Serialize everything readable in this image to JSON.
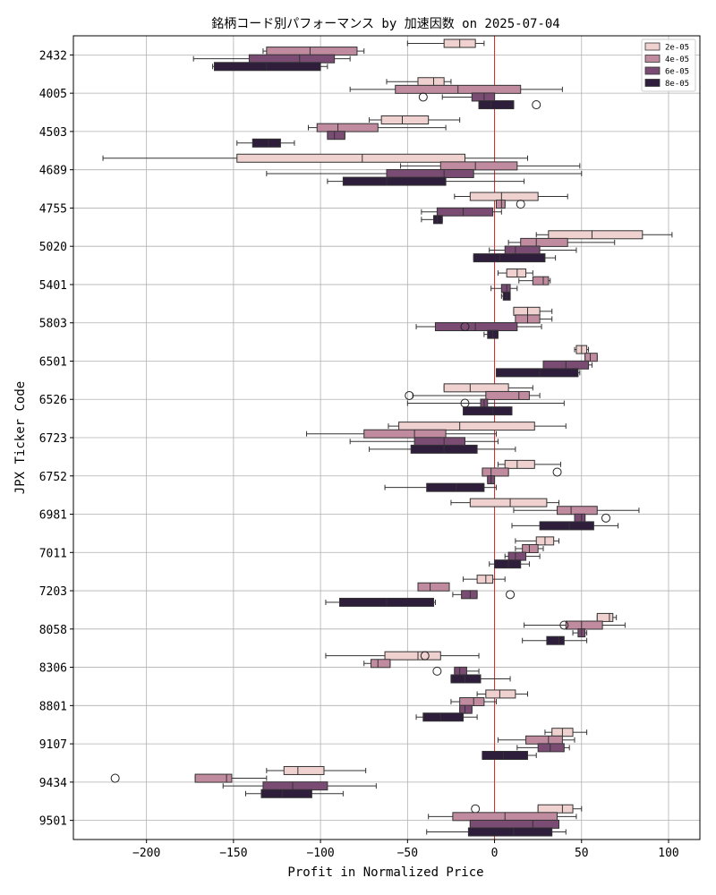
{
  "chart_data": {
    "type": "box",
    "orientation": "horizontal",
    "title": "銘柄コード別パフォーマンス by 加速因数 on 2025-07-04",
    "xlabel": "Profit in Normalized Price",
    "ylabel": "JPX Ticker Code",
    "xlim": [
      -242,
      118
    ],
    "xticks": [
      -200,
      -150,
      -100,
      -50,
      0,
      50,
      100
    ],
    "xtick_labels": [
      "−200",
      "−150",
      "−100",
      "−50",
      "0",
      "50",
      "100"
    ],
    "grid": true,
    "reference_line": {
      "x": 0,
      "color": "#d62728"
    },
    "legend": {
      "placement": "top-right",
      "entries": [
        {
          "label": "2e-05",
          "color": "#efd1cf"
        },
        {
          "label": "4e-05",
          "color": "#c08a9f"
        },
        {
          "label": "6e-05",
          "color": "#7b4c73"
        },
        {
          "label": "8e-05",
          "color": "#2e1e3c"
        }
      ]
    },
    "categories": [
      "2432",
      "4005",
      "4503",
      "4689",
      "4755",
      "5020",
      "5401",
      "5803",
      "6501",
      "6526",
      "6723",
      "6752",
      "6981",
      "7011",
      "7203",
      "8058",
      "8306",
      "8801",
      "9107",
      "9434",
      "9501"
    ],
    "series": [
      {
        "name": "2e-05",
        "boxes": [
          {
            "cat": "2432",
            "wmin": -50,
            "q1": -29,
            "med": -20,
            "q3": -11,
            "wmax": -6,
            "outliers": []
          },
          {
            "cat": "4005",
            "wmin": -62,
            "q1": -44,
            "med": -35,
            "q3": -29,
            "wmax": -25,
            "outliers": []
          },
          {
            "cat": "4503",
            "wmin": -72,
            "q1": -65,
            "med": -53,
            "q3": -38,
            "wmax": -20,
            "outliers": []
          },
          {
            "cat": "4689",
            "wmin": -225,
            "q1": -148,
            "med": -76,
            "q3": -17,
            "wmax": 19,
            "outliers": []
          },
          {
            "cat": "4755",
            "wmin": -23,
            "q1": -14,
            "med": 4,
            "q3": 25,
            "wmax": 42,
            "outliers": []
          },
          {
            "cat": "5020",
            "wmin": 24,
            "q1": 31,
            "med": 56,
            "q3": 85,
            "wmax": 102,
            "outliers": []
          },
          {
            "cat": "5401",
            "wmin": 2,
            "q1": 7,
            "med": 13,
            "q3": 18,
            "wmax": 22,
            "outliers": []
          },
          {
            "cat": "5803",
            "wmin": 11,
            "q1": 11,
            "med": 19,
            "q3": 26,
            "wmax": 33,
            "outliers": []
          },
          {
            "cat": "6501",
            "wmin": 46,
            "q1": 47,
            "med": 50,
            "q3": 53,
            "wmax": 54,
            "outliers": []
          },
          {
            "cat": "6526",
            "wmin": -29,
            "q1": -29,
            "med": -14,
            "q3": 8,
            "wmax": 22,
            "outliers": []
          },
          {
            "cat": "6723",
            "wmin": -61,
            "q1": -55,
            "med": -20,
            "q3": 23,
            "wmax": 41,
            "outliers": []
          },
          {
            "cat": "6752",
            "wmin": 2,
            "q1": 6,
            "med": 13,
            "q3": 23,
            "wmax": 38,
            "outliers": []
          },
          {
            "cat": "6981",
            "wmin": -25,
            "q1": -14,
            "med": 9,
            "q3": 30,
            "wmax": 37,
            "outliers": []
          },
          {
            "cat": "7011",
            "wmin": 12,
            "q1": 24,
            "med": 29,
            "q3": 34,
            "wmax": 37,
            "outliers": []
          },
          {
            "cat": "7203",
            "wmin": -18,
            "q1": -10,
            "med": -5,
            "q3": -1,
            "wmax": 6,
            "outliers": []
          },
          {
            "cat": "8058",
            "wmin": 59,
            "q1": 59,
            "med": 66,
            "q3": 68,
            "wmax": 70,
            "outliers": []
          },
          {
            "cat": "8306",
            "wmin": -97,
            "q1": -63,
            "med": -44,
            "q3": -31,
            "wmax": -9,
            "outliers": [
              -40
            ]
          },
          {
            "cat": "8801",
            "wmin": -10,
            "q1": -5,
            "med": 3,
            "q3": 12,
            "wmax": 19,
            "outliers": []
          },
          {
            "cat": "9107",
            "wmin": 29,
            "q1": 33,
            "med": 39,
            "q3": 45,
            "wmax": 53,
            "outliers": []
          },
          {
            "cat": "9434",
            "wmin": -131,
            "q1": -121,
            "med": -113,
            "q3": -98,
            "wmax": -74,
            "outliers": []
          },
          {
            "cat": "9501",
            "wmin": 25,
            "q1": 25,
            "med": 39,
            "q3": 45,
            "wmax": 50,
            "outliers": [
              -11
            ]
          }
        ]
      },
      {
        "name": "4e-05",
        "boxes": [
          {
            "cat": "2432",
            "wmin": -133,
            "q1": -131,
            "med": -106,
            "q3": -79,
            "wmax": -75,
            "outliers": []
          },
          {
            "cat": "4005",
            "wmin": -83,
            "q1": -57,
            "med": -21,
            "q3": 15,
            "wmax": 39,
            "outliers": []
          },
          {
            "cat": "4503",
            "wmin": -107,
            "q1": -102,
            "med": -90,
            "q3": -67,
            "wmax": -28,
            "outliers": []
          },
          {
            "cat": "4689",
            "wmin": -54,
            "q1": -31,
            "med": -11,
            "q3": 13,
            "wmax": 49,
            "outliers": []
          },
          {
            "cat": "4755",
            "wmin": 1,
            "q1": 1,
            "med": 4,
            "q3": 6,
            "wmax": 6,
            "outliers": [
              15
            ]
          },
          {
            "cat": "5020",
            "wmin": 8,
            "q1": 15,
            "med": 24,
            "q3": 42,
            "wmax": 69,
            "outliers": []
          },
          {
            "cat": "5401",
            "wmin": 14,
            "q1": 22,
            "med": 28,
            "q3": 31,
            "wmax": 32,
            "outliers": []
          },
          {
            "cat": "5803",
            "wmin": 13,
            "q1": 12,
            "med": 19,
            "q3": 26,
            "wmax": 33,
            "outliers": []
          },
          {
            "cat": "6501",
            "wmin": 52,
            "q1": 52,
            "med": 55,
            "q3": 59,
            "wmax": 59,
            "outliers": []
          },
          {
            "cat": "6526",
            "wmin": -47,
            "q1": -5,
            "med": 14,
            "q3": 20,
            "wmax": 26,
            "outliers": [
              -49
            ]
          },
          {
            "cat": "6723",
            "wmin": -108,
            "q1": -75,
            "med": -46,
            "q3": -28,
            "wmax": 1,
            "outliers": []
          },
          {
            "cat": "6752",
            "wmin": -7,
            "q1": -7,
            "med": -2,
            "q3": 8,
            "wmax": 8,
            "outliers": [
              36
            ]
          },
          {
            "cat": "6981",
            "wmin": 11,
            "q1": 36,
            "med": 44,
            "q3": 59,
            "wmax": 83,
            "outliers": []
          },
          {
            "cat": "7011",
            "wmin": 12,
            "q1": 16,
            "med": 20,
            "q3": 25,
            "wmax": 28,
            "outliers": []
          },
          {
            "cat": "7203",
            "wmin": -44,
            "q1": -44,
            "med": -37,
            "q3": -26,
            "wmax": -26,
            "outliers": []
          },
          {
            "cat": "8058",
            "wmin": 17,
            "q1": 41,
            "med": 50,
            "q3": 62,
            "wmax": 75,
            "outliers": [
              40
            ]
          },
          {
            "cat": "8306",
            "wmin": -75,
            "q1": -71,
            "med": -67,
            "q3": -60,
            "wmax": -60,
            "outliers": []
          },
          {
            "cat": "8801",
            "wmin": -25,
            "q1": -20,
            "med": -12,
            "q3": -6,
            "wmax": 1,
            "outliers": []
          },
          {
            "cat": "9107",
            "wmin": 2,
            "q1": 18,
            "med": 31,
            "q3": 39,
            "wmax": 46,
            "outliers": []
          },
          {
            "cat": "9434",
            "wmin": -172,
            "q1": -172,
            "med": -154,
            "q3": -151,
            "wmax": -131,
            "outliers": [
              -218
            ]
          },
          {
            "cat": "9501",
            "wmin": -38,
            "q1": -24,
            "med": 6,
            "q3": 36,
            "wmax": 47,
            "outliers": []
          }
        ]
      },
      {
        "name": "6e-05",
        "boxes": [
          {
            "cat": "2432",
            "wmin": -173,
            "q1": -141,
            "med": -112,
            "q3": -92,
            "wmax": -83,
            "outliers": []
          },
          {
            "cat": "4005",
            "wmin": -30,
            "q1": -13,
            "med": -6,
            "q3": 0,
            "wmax": 0,
            "outliers": [
              -41
            ]
          },
          {
            "cat": "4503",
            "wmin": -96,
            "q1": -96,
            "med": -92,
            "q3": -86,
            "wmax": -86,
            "outliers": []
          },
          {
            "cat": "4689",
            "wmin": -131,
            "q1": -62,
            "med": -29,
            "q3": -12,
            "wmax": 50,
            "outliers": []
          },
          {
            "cat": "4755",
            "wmin": -42,
            "q1": -33,
            "med": -18,
            "q3": -1,
            "wmax": 4,
            "outliers": []
          },
          {
            "cat": "5020",
            "wmin": -3,
            "q1": 6,
            "med": 12,
            "q3": 26,
            "wmax": 47,
            "outliers": []
          },
          {
            "cat": "5401",
            "wmin": -2,
            "q1": 4,
            "med": 7,
            "q3": 9,
            "wmax": 13,
            "outliers": []
          },
          {
            "cat": "5803",
            "wmin": -45,
            "q1": -34,
            "med": -11,
            "q3": 13,
            "wmax": 27,
            "outliers": [
              -17
            ]
          },
          {
            "cat": "6501",
            "wmin": 28,
            "q1": 28,
            "med": 41,
            "q3": 54,
            "wmax": 56,
            "outliers": []
          },
          {
            "cat": "6526",
            "wmin": -50,
            "q1": -8,
            "med": -6,
            "q3": -4,
            "wmax": 40,
            "outliers": [
              -17
            ]
          },
          {
            "cat": "6723",
            "wmin": -83,
            "q1": -46,
            "med": -29,
            "q3": -17,
            "wmax": 2,
            "outliers": []
          },
          {
            "cat": "6752",
            "wmin": -4,
            "q1": -4,
            "med": -2,
            "q3": 0,
            "wmax": 0,
            "outliers": []
          },
          {
            "cat": "6981",
            "wmin": 46,
            "q1": 46,
            "med": 50,
            "q3": 52,
            "wmax": 52,
            "outliers": [
              64
            ]
          },
          {
            "cat": "7011",
            "wmin": 6,
            "q1": 8,
            "med": 12,
            "q3": 18,
            "wmax": 26,
            "outliers": []
          },
          {
            "cat": "7203",
            "wmin": -24,
            "q1": -19,
            "med": -14,
            "q3": -10,
            "wmax": -10,
            "outliers": [
              9
            ]
          },
          {
            "cat": "8058",
            "wmin": 45,
            "q1": 48,
            "med": 50,
            "q3": 52,
            "wmax": 53,
            "outliers": []
          },
          {
            "cat": "8306",
            "wmin": -23,
            "q1": -23,
            "med": -20,
            "q3": -16,
            "wmax": -9,
            "outliers": [
              -33
            ]
          },
          {
            "cat": "8801",
            "wmin": -20,
            "q1": -20,
            "med": -17,
            "q3": -13,
            "wmax": -13,
            "outliers": []
          },
          {
            "cat": "9107",
            "wmin": 13,
            "q1": 25,
            "med": 32,
            "q3": 40,
            "wmax": 43,
            "outliers": []
          },
          {
            "cat": "9434",
            "wmin": -156,
            "q1": -133,
            "med": -116,
            "q3": -96,
            "wmax": -68,
            "outliers": []
          },
          {
            "cat": "9501",
            "wmin": -14,
            "q1": -14,
            "med": 22,
            "q3": 37,
            "wmax": 37,
            "outliers": []
          }
        ]
      },
      {
        "name": "8e-05",
        "boxes": [
          {
            "cat": "2432",
            "wmin": -162,
            "q1": -161,
            "med": -131,
            "q3": -100,
            "wmax": -96,
            "outliers": []
          },
          {
            "cat": "4005",
            "wmin": -9,
            "q1": -9,
            "med": -2,
            "q3": 11,
            "wmax": 11,
            "outliers": [
              24
            ]
          },
          {
            "cat": "4503",
            "wmin": -148,
            "q1": -139,
            "med": -130,
            "q3": -123,
            "wmax": -115,
            "outliers": []
          },
          {
            "cat": "4689",
            "wmin": -96,
            "q1": -87,
            "med": -62,
            "q3": -28,
            "wmax": 17,
            "outliers": []
          },
          {
            "cat": "4755",
            "wmin": -42,
            "q1": -35,
            "med": -33,
            "q3": -30,
            "wmax": -30,
            "outliers": []
          },
          {
            "cat": "5020",
            "wmin": -12,
            "q1": -12,
            "med": 3,
            "q3": 29,
            "wmax": 35,
            "outliers": []
          },
          {
            "cat": "5401",
            "wmin": 4,
            "q1": 5,
            "med": 7,
            "q3": 9,
            "wmax": 9,
            "outliers": []
          },
          {
            "cat": "5803",
            "wmin": -6,
            "q1": -4,
            "med": -1,
            "q3": 2,
            "wmax": 2,
            "outliers": []
          },
          {
            "cat": "6501",
            "wmin": 1,
            "q1": 1,
            "med": 26,
            "q3": 48,
            "wmax": 49,
            "outliers": []
          },
          {
            "cat": "6526",
            "wmin": -17,
            "q1": -18,
            "med": -1,
            "q3": 10,
            "wmax": 10,
            "outliers": []
          },
          {
            "cat": "6723",
            "wmin": -72,
            "q1": -48,
            "med": -29,
            "q3": -10,
            "wmax": 12,
            "outliers": []
          },
          {
            "cat": "6752",
            "wmin": -63,
            "q1": -39,
            "med": -22,
            "q3": -6,
            "wmax": 1,
            "outliers": []
          },
          {
            "cat": "6981",
            "wmin": 10,
            "q1": 26,
            "med": 43,
            "q3": 57,
            "wmax": 71,
            "outliers": []
          },
          {
            "cat": "7011",
            "wmin": -3,
            "q1": 0,
            "med": 8,
            "q3": 15,
            "wmax": 20,
            "outliers": []
          },
          {
            "cat": "7203",
            "wmin": -97,
            "q1": -89,
            "med": -62,
            "q3": -35,
            "wmax": -34,
            "outliers": []
          },
          {
            "cat": "8058",
            "wmin": 16,
            "q1": 30,
            "med": 37,
            "q3": 40,
            "wmax": 53,
            "outliers": []
          },
          {
            "cat": "8306",
            "wmin": -25,
            "q1": -25,
            "med": -17,
            "q3": -8,
            "wmax": 9,
            "outliers": []
          },
          {
            "cat": "8801",
            "wmin": -45,
            "q1": -41,
            "med": -31,
            "q3": -18,
            "wmax": -10,
            "outliers": []
          },
          {
            "cat": "9107",
            "wmin": -7,
            "q1": -7,
            "med": 5,
            "q3": 19,
            "wmax": 24,
            "outliers": []
          },
          {
            "cat": "9434",
            "wmin": -143,
            "q1": -134,
            "med": -122,
            "q3": -105,
            "wmax": -87,
            "outliers": []
          },
          {
            "cat": "9501",
            "wmin": -39,
            "q1": -15,
            "med": 11,
            "q3": 33,
            "wmax": 41,
            "outliers": []
          }
        ]
      }
    ]
  }
}
